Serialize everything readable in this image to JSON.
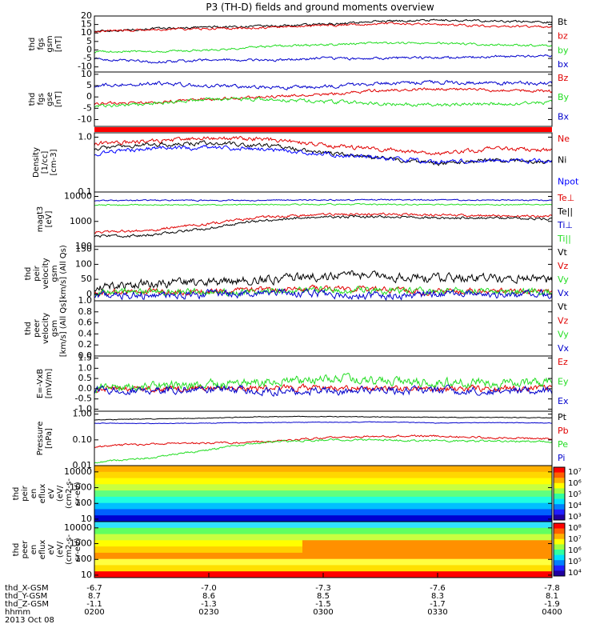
{
  "title": "P3 (TH-D) fields and ground moments overview",
  "colors": {
    "black": "#000000",
    "red": "#e00000",
    "green": "#22dd22",
    "blue": "#0000cc",
    "blue_alt": "#0000ff"
  },
  "chart_data": [
    {
      "id": "fgs_gsm",
      "type": "line",
      "ylabel": [
        "thd",
        "fgs",
        "gsm",
        "[nT]"
      ],
      "ylim": [
        -13,
        20
      ],
      "log": false,
      "ticks": [
        "20",
        "15",
        "10",
        "5",
        "0",
        "-5",
        "-10"
      ],
      "tick_values": [
        20,
        15,
        10,
        5,
        0,
        -5,
        -10
      ],
      "series": [
        {
          "name": "Bt",
          "color": "#000000",
          "x": [
            0,
            30,
            60,
            90,
            120,
            150,
            180,
            210,
            240
          ],
          "y": [
            11,
            12.5,
            13.5,
            14,
            15,
            17,
            17.5,
            17,
            16.5
          ],
          "noise": 0.5
        },
        {
          "name": "bz",
          "color": "#e00000",
          "x": [
            0,
            30,
            60,
            90,
            120,
            150,
            180,
            210,
            240
          ],
          "y": [
            11,
            12,
            12.5,
            13,
            14.5,
            15.5,
            15,
            14,
            13.5
          ],
          "noise": 0.5
        },
        {
          "name": "by",
          "color": "#22dd22",
          "x": [
            0,
            30,
            60,
            90,
            120,
            150,
            180,
            210,
            240
          ],
          "y": [
            -1,
            -1,
            0,
            2,
            3,
            4,
            4,
            3,
            2.5
          ],
          "noise": 0.5
        },
        {
          "name": "bx",
          "color": "#0000cc",
          "x": [
            0,
            30,
            60,
            90,
            120,
            150,
            180,
            210,
            240
          ],
          "y": [
            -5,
            -7,
            -6,
            -6,
            -5,
            -5,
            -4.5,
            -4,
            -3.5
          ],
          "noise": 0.6
        }
      ]
    },
    {
      "id": "fgs_gse",
      "type": "line",
      "ylabel": [
        "thd",
        "fgs",
        "gse",
        "[nT]"
      ],
      "ylim": [
        -13,
        11
      ],
      "log": false,
      "ticks": [
        "10",
        "5",
        "0",
        "-5",
        "-10"
      ],
      "tick_values": [
        10,
        5,
        0,
        -5,
        -10
      ],
      "series": [
        {
          "name": "Bz",
          "color": "#e00000",
          "x": [
            0,
            30,
            60,
            90,
            120,
            150,
            180,
            210,
            240
          ],
          "y": [
            -3,
            -2.5,
            -1,
            0,
            1,
            3,
            3.5,
            3,
            2.5
          ],
          "noise": 0.5
        },
        {
          "name": "By",
          "color": "#22dd22",
          "x": [
            0,
            30,
            60,
            90,
            120,
            150,
            180,
            210,
            240
          ],
          "y": [
            -4,
            -3,
            -1,
            -1,
            -2,
            -3,
            -3.5,
            -3,
            -2.5
          ],
          "noise": 0.6
        },
        {
          "name": "Bx",
          "color": "#0000cc",
          "x": [
            0,
            30,
            60,
            90,
            120,
            150,
            180,
            210,
            240
          ],
          "y": [
            5,
            6,
            5,
            4,
            4.5,
            6,
            6.5,
            6,
            6
          ],
          "noise": 0.6
        }
      ]
    },
    {
      "id": "bar",
      "type": "flag",
      "label": "",
      "color": "#ff0000"
    },
    {
      "id": "density",
      "type": "line",
      "ylabel": [
        "Density",
        "[1/cc]",
        "[cm-3]"
      ],
      "ylim": [
        0.1,
        1.2
      ],
      "log": true,
      "ticks": [
        "1.0",
        "0.1"
      ],
      "tick_values": [
        1.0,
        0.1
      ],
      "series": [
        {
          "name": "Ne",
          "color": "#e00000",
          "x": [
            0,
            30,
            60,
            90,
            120,
            150,
            180,
            210,
            240
          ],
          "y": [
            0.75,
            0.85,
            0.95,
            0.92,
            0.7,
            0.6,
            0.5,
            0.62,
            0.58
          ],
          "noise": 0.03
        },
        {
          "name": "Ni",
          "color": "#000000",
          "x": [
            0,
            30,
            60,
            90,
            120,
            150,
            180,
            210,
            240
          ],
          "y": [
            0.62,
            0.72,
            0.78,
            0.7,
            0.52,
            0.42,
            0.33,
            0.38,
            0.36
          ],
          "noise": 0.03
        },
        {
          "name": "Npot",
          "color": "#0000ff",
          "x": [
            0,
            30,
            60,
            90,
            120,
            150,
            180,
            210,
            240
          ],
          "y": [
            0.5,
            0.62,
            0.65,
            0.6,
            0.5,
            0.42,
            0.35,
            0.38,
            0.37
          ],
          "noise": 0.03
        }
      ]
    },
    {
      "id": "temperature",
      "type": "line",
      "ylabel": [
        "magt3",
        "[eV]"
      ],
      "ylim": [
        100,
        15000
      ],
      "log": true,
      "ticks": [
        "10000",
        "1000",
        "100"
      ],
      "tick_values": [
        10000,
        1000,
        100
      ],
      "series": [
        {
          "name": "Te⊥",
          "color": "#e00000",
          "x": [
            0,
            30,
            60,
            90,
            120,
            150,
            180,
            210,
            240
          ],
          "y": [
            380,
            430,
            800,
            1500,
            1900,
            1900,
            1800,
            1700,
            1600
          ],
          "noise": 0.04
        },
        {
          "name": "Te||",
          "color": "#000000",
          "x": [
            0,
            30,
            60,
            90,
            120,
            150,
            180,
            210,
            240
          ],
          "y": [
            260,
            280,
            520,
            1100,
            1500,
            1500,
            1400,
            1350,
            1250
          ],
          "noise": 0.04
        },
        {
          "name": "Ti⊥",
          "color": "#0000cc",
          "x": [
            0,
            30,
            60,
            90,
            120,
            150,
            180,
            210,
            240
          ],
          "y": [
            6800,
            7000,
            6900,
            7000,
            7200,
            7300,
            7100,
            7100,
            7000
          ],
          "noise": 0.02
        },
        {
          "name": "Ti||",
          "color": "#22dd22",
          "x": [
            0,
            30,
            60,
            90,
            120,
            150,
            180,
            210,
            240
          ],
          "y": [
            4600,
            4600,
            4500,
            4700,
            4800,
            4800,
            4700,
            4700,
            4700
          ],
          "noise": 0.02
        }
      ]
    },
    {
      "id": "peir_velocity",
      "type": "line",
      "ylabel": [
        "thd",
        "peir",
        "velocity",
        "gsm",
        "[km/s] (All Qs)"
      ],
      "ylim": [
        -22,
        160
      ],
      "log": false,
      "ticks": [
        "150",
        "100",
        "50",
        "0"
      ],
      "tick_values": [
        150,
        100,
        50,
        0
      ],
      "series": [
        {
          "name": "Vt",
          "color": "#000000",
          "x": [
            0,
            30,
            60,
            90,
            120,
            150,
            180,
            210,
            240
          ],
          "y": [
            25,
            35,
            40,
            50,
            60,
            60,
            55,
            55,
            50
          ],
          "noise": 12
        },
        {
          "name": "Vz",
          "color": "#e00000",
          "x": [
            0,
            30,
            60,
            90,
            120,
            150,
            180,
            210,
            240
          ],
          "y": [
            5,
            10,
            10,
            15,
            20,
            15,
            10,
            10,
            8
          ],
          "noise": 8
        },
        {
          "name": "Vy",
          "color": "#22dd22",
          "x": [
            0,
            30,
            60,
            90,
            120,
            150,
            180,
            210,
            240
          ],
          "y": [
            5,
            10,
            8,
            10,
            15,
            10,
            10,
            10,
            8
          ],
          "noise": 9
        },
        {
          "name": "Vx",
          "color": "#0000cc",
          "x": [
            0,
            30,
            60,
            90,
            120,
            150,
            180,
            210,
            240
          ],
          "y": [
            0,
            -5,
            0,
            5,
            0,
            -5,
            0,
            0,
            0
          ],
          "noise": 10
        }
      ]
    },
    {
      "id": "peer_velocity",
      "type": "empty",
      "ylabel": [
        "thd",
        "peer",
        "velocity",
        "gsm",
        "[km/s] (All Qs)"
      ],
      "ylim": [
        0,
        1
      ],
      "ticks": [
        "1.0",
        "0.8",
        "0.6",
        "0.4",
        "0.2",
        "0.0"
      ],
      "tick_values": [
        1.0,
        0.8,
        0.6,
        0.4,
        0.2,
        0.0
      ],
      "series": [
        {
          "name": "Vt",
          "color": "#000000"
        },
        {
          "name": "Vz",
          "color": "#e00000"
        },
        {
          "name": "Vy",
          "color": "#22dd22"
        },
        {
          "name": "Vx",
          "color": "#0000cc"
        }
      ]
    },
    {
      "id": "efield",
      "type": "line",
      "ylabel": [
        "E=-VxB",
        "[mV/m]"
      ],
      "ylim": [
        -1.1,
        1.6
      ],
      "log": false,
      "ticks": [
        "1.5",
        "1.0",
        "0.5",
        "0.0",
        "-0.5",
        "-1.0"
      ],
      "tick_values": [
        1.5,
        1.0,
        0.5,
        0.0,
        -0.5,
        -1.0
      ],
      "series": [
        {
          "name": "Ez",
          "color": "#e00000",
          "x": [
            0,
            30,
            60,
            90,
            120,
            150,
            180,
            210,
            240
          ],
          "y": [
            0,
            0,
            0,
            0,
            0.05,
            0,
            0,
            0,
            0
          ],
          "noise": 0.12
        },
        {
          "name": "Ey",
          "color": "#22dd22",
          "x": [
            0,
            30,
            60,
            90,
            120,
            150,
            180,
            210,
            240
          ],
          "y": [
            0.1,
            0.1,
            0.2,
            0.35,
            0.5,
            0.4,
            0.3,
            0.3,
            0.25
          ],
          "noise": 0.18
        },
        {
          "name": "Ex",
          "color": "#0000cc",
          "x": [
            0,
            30,
            60,
            90,
            120,
            150,
            180,
            210,
            240
          ],
          "y": [
            -0.1,
            -0.1,
            0,
            -0.1,
            -0.1,
            -0.1,
            -0.1,
            -0.1,
            -0.1
          ],
          "noise": 0.15
        }
      ]
    },
    {
      "id": "pressure",
      "type": "line",
      "ylabel": [
        "Pressure",
        "[nPa]"
      ],
      "ylim": [
        0.01,
        1.3
      ],
      "log": true,
      "ticks": [
        "1.00",
        "0.10",
        "0.01"
      ],
      "tick_values": [
        1.0,
        0.1,
        0.01
      ],
      "series": [
        {
          "name": "Pt",
          "color": "#000000",
          "x": [
            0,
            30,
            60,
            90,
            120,
            150,
            180,
            210,
            240
          ],
          "y": [
            0.6,
            0.65,
            0.7,
            0.8,
            0.8,
            0.78,
            0.75,
            0.75,
            0.72
          ],
          "noise": 0.01
        },
        {
          "name": "Pb",
          "color": "#e00000",
          "x": [
            0,
            30,
            60,
            90,
            120,
            150,
            180,
            210,
            240
          ],
          "y": [
            0.055,
            0.07,
            0.075,
            0.085,
            0.12,
            0.14,
            0.14,
            0.12,
            0.11
          ],
          "noise": 0.03
        },
        {
          "name": "Pe",
          "color": "#22dd22",
          "x": [
            0,
            30,
            60,
            90,
            120,
            150,
            180,
            210,
            240
          ],
          "y": [
            0.013,
            0.02,
            0.04,
            0.08,
            0.1,
            0.1,
            0.09,
            0.09,
            0.085
          ],
          "noise": 0.03
        },
        {
          "name": "Pi",
          "color": "#0000cc",
          "x": [
            0,
            30,
            60,
            90,
            120,
            150,
            180,
            210,
            240
          ],
          "y": [
            0.45,
            0.43,
            0.45,
            0.47,
            0.48,
            0.5,
            0.45,
            0.47,
            0.45
          ],
          "noise": 0.01
        }
      ]
    },
    {
      "id": "peir_spectrogram",
      "type": "heatmap",
      "ylabel": [
        "thd",
        "peir",
        "en",
        "eflux",
        "eV",
        "(eV/",
        "(cm2-s-",
        "sr-eV)"
      ],
      "log": true,
      "ticks": [
        "10000",
        "1000",
        "100",
        "10"
      ],
      "tick_values": [
        10000,
        1000,
        100,
        10
      ],
      "colorbar_ticks": [
        "10⁷",
        "10⁶",
        "10⁵",
        "10⁴",
        "10³"
      ],
      "bands": [
        [
          "#ffb000",
          "#ffd700",
          "#ffff00",
          "#c8ff40",
          "#60ff80",
          "#20ffe0",
          "#00c0ff",
          "#0060ff",
          "#0000d0"
        ]
      ]
    },
    {
      "id": "peer_spectrogram",
      "type": "heatmap",
      "ylabel": [
        "thd",
        "peer",
        "en",
        "eflux",
        "eV",
        "(eV/",
        "(cm2-s-",
        "sr-eV)"
      ],
      "log": true,
      "ticks": [
        "10000",
        "1000",
        "100",
        "10"
      ],
      "tick_values": [
        10000,
        1000,
        100,
        10
      ],
      "colorbar_ticks": [
        "10⁸",
        "10⁷",
        "10⁶",
        "10⁵",
        "10⁴"
      ],
      "bands": [
        [
          "#30e0ff",
          "#60ff60",
          "#c8ff40",
          "#ffff00",
          "#ffd000",
          "#ff9000",
          "#ffff40",
          "#ffe000",
          "#ff0000"
        ]
      ]
    }
  ],
  "x_axis": {
    "time_ticks": [
      "0200",
      "0230",
      "0300",
      "0330",
      "0400"
    ],
    "rows": [
      {
        "label": "thd_X-GSM",
        "values": [
          "-6.7",
          "-7.0",
          "-7.3",
          "-7.6",
          "-7.8"
        ]
      },
      {
        "label": "thd_Y-GSM",
        "values": [
          "8.7",
          "8.6",
          "8.5",
          "8.3",
          "8.1"
        ]
      },
      {
        "label": "thd_Z-GSM",
        "values": [
          "-1.1",
          "-1.3",
          "-1.5",
          "-1.7",
          "-1.9"
        ]
      },
      {
        "label": "hhmm",
        "values": []
      }
    ],
    "date": "2013 Oct 08"
  }
}
